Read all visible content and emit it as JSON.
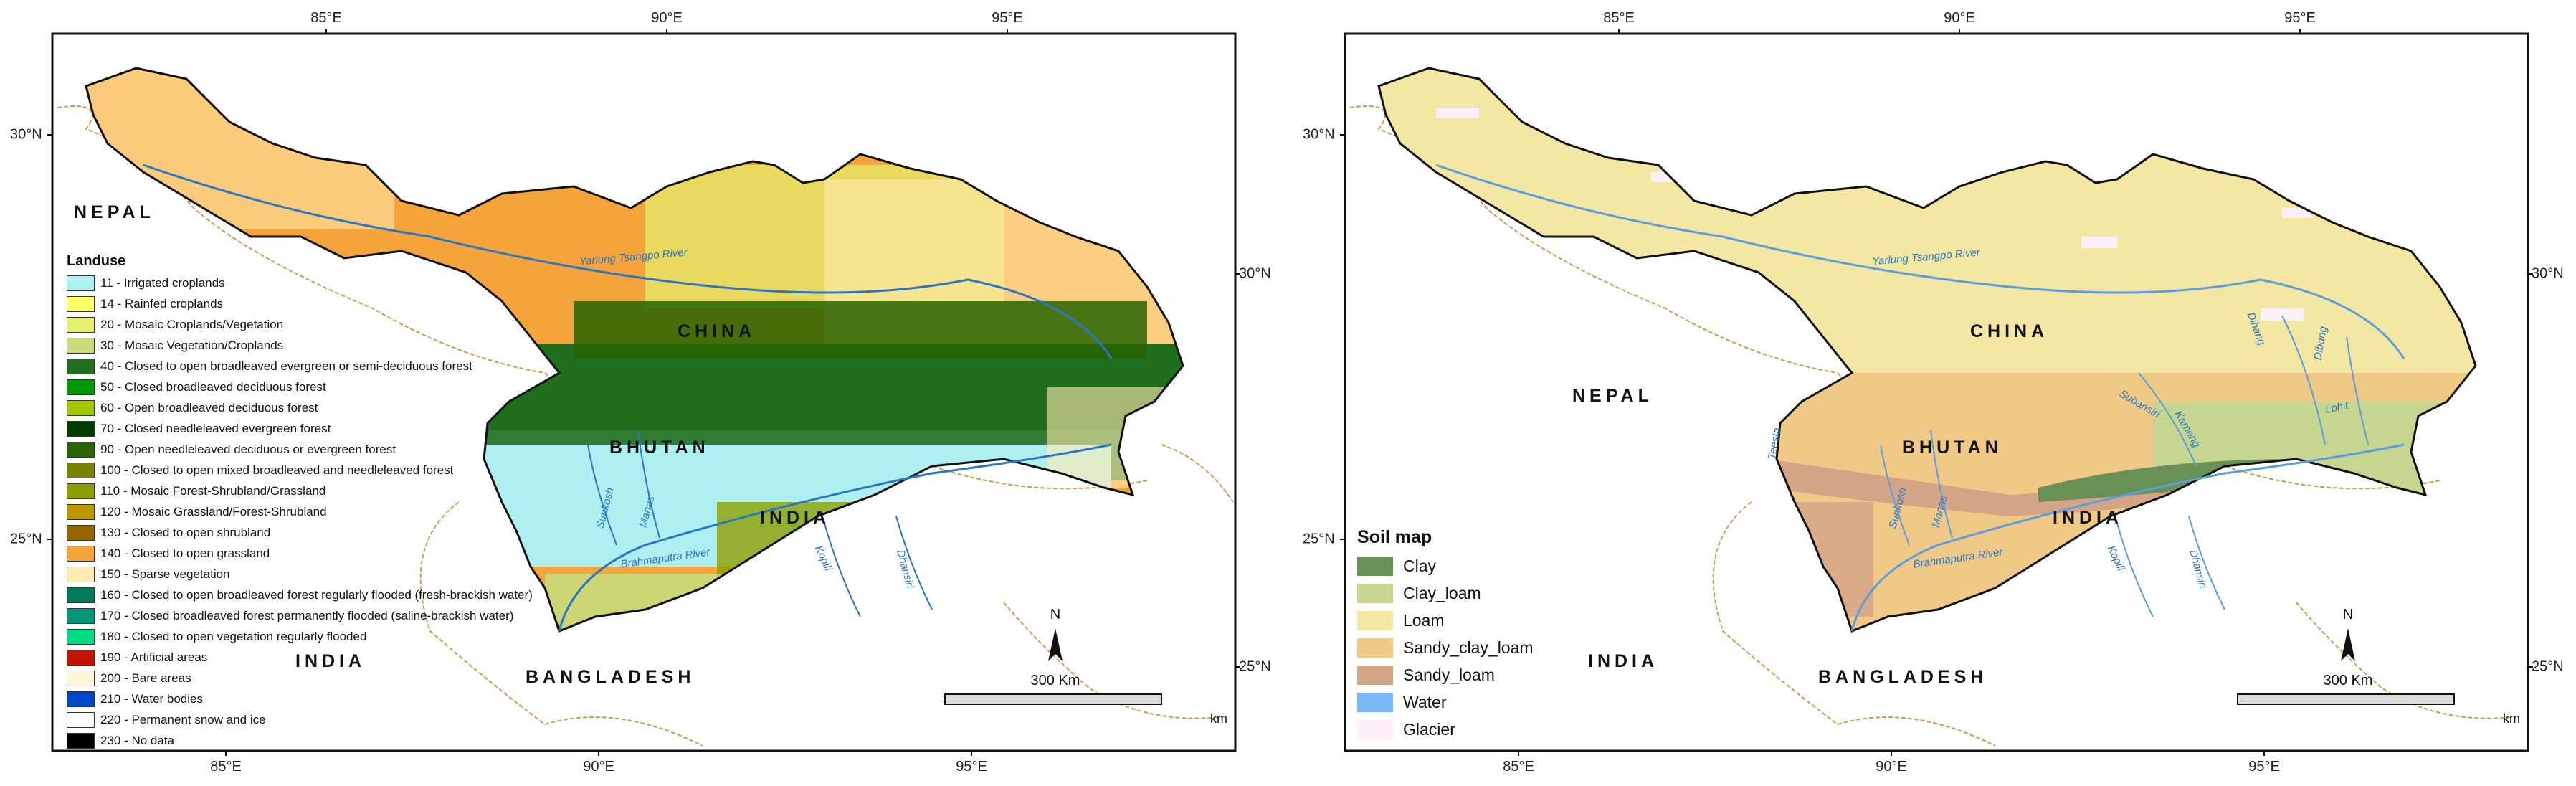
{
  "left_map": {
    "top_ticks": [
      "85°E",
      "90°E",
      "95°E"
    ],
    "bottom_ticks": [
      "85°E",
      "90°E",
      "95°E"
    ],
    "left_ticks": [
      "30°N",
      "25°N"
    ],
    "right_ticks": [
      "30°N",
      "25°N"
    ],
    "countries": {
      "nepal": "NEPAL",
      "china": "CHINA",
      "bhutan": "BHUTAN",
      "india_east": "INDIA",
      "india_south": "INDIA",
      "bangladesh": "BANGLADESH"
    },
    "rivers": {
      "yarlung": "Yarlung Tsangpo River",
      "brahmaputra": "Brahmaputra River",
      "sunkosh": "Sunkosh",
      "manas": "Manas",
      "kopili": "Kopili",
      "dhansiri": "Dhansiri"
    },
    "legend": {
      "title": "Landuse",
      "items": [
        {
          "label": "11 - Irrigated croplands",
          "color": "#aef0f2"
        },
        {
          "label": "14 - Rainfed croplands",
          "color": "#ffff66"
        },
        {
          "label": "20 - Mosaic Croplands/Vegetation",
          "color": "#e6f06e"
        },
        {
          "label": "30 - Mosaic Vegetation/Croplands",
          "color": "#c8dc7a"
        },
        {
          "label": "40 - Closed to open broadleaved evergreen or semi-deciduous forest",
          "color": "#1e6e1e"
        },
        {
          "label": "50 - Closed broadleaved deciduous forest",
          "color": "#009900"
        },
        {
          "label": "60 - Open broadleaved deciduous forest",
          "color": "#a0c800"
        },
        {
          "label": "70 - Closed needleleaved evergreen forest",
          "color": "#003c00"
        },
        {
          "label": "90 - Open needleleaved deciduous or evergreen forest",
          "color": "#286400"
        },
        {
          "label": "100 - Closed to open mixed broadleaved and needleleaved forest",
          "color": "#788200"
        },
        {
          "label": "110 - Mosaic Forest-Shrubland/Grassland",
          "color": "#8ca000"
        },
        {
          "label": "120 - Mosaic Grassland/Forest-Shrubland",
          "color": "#be9600"
        },
        {
          "label": "130 - Closed to open shrubland",
          "color": "#966400"
        },
        {
          "label": "140 - Closed to open grassland",
          "color": "#f5a43c"
        },
        {
          "label": "150 - Sparse vegetation",
          "color": "#ffebaf"
        },
        {
          "label": "160 - Closed to open broadleaved forest regularly flooded (fresh-brackish water)",
          "color": "#00785a"
        },
        {
          "label": "170 - Closed broadleaved forest permanently flooded (saline-brackish water)",
          "color": "#009678"
        },
        {
          "label": "180 - Closed to open vegetation regularly flooded",
          "color": "#00dc82"
        },
        {
          "label": "190 - Artificial areas",
          "color": "#c31400"
        },
        {
          "label": "200 - Bare areas",
          "color": "#fff5d7"
        },
        {
          "label": "210 - Water bodies",
          "color": "#0046c8"
        },
        {
          "label": "220 - Permanent snow and ice",
          "color": "#ffffff"
        },
        {
          "label": "230 - No data",
          "color": "#000000"
        }
      ]
    },
    "north_label": "N",
    "scale_label": "300 Km",
    "km_label": "km"
  },
  "right_map": {
    "top_ticks": [
      "85°E",
      "90°E",
      "95°E"
    ],
    "bottom_ticks": [
      "85°E",
      "90°E",
      "95°E"
    ],
    "left_ticks": [
      "30°N",
      "25°N"
    ],
    "right_ticks": [
      "30°N",
      "25°N"
    ],
    "countries": {
      "nepal": "NEPAL",
      "china": "CHINA",
      "bhutan": "BHUTAN",
      "india_east": "INDIA",
      "india_south": "INDIA",
      "bangladesh": "BANGLADESH"
    },
    "rivers": {
      "yarlung": "Yarlung Tsangpo River",
      "brahmaputra": "Brahmaputra River",
      "sunkosh": "Sunkosh",
      "manas": "Manas",
      "kopili": "Kopili",
      "dhansiri": "Dhansiri",
      "subansiri": "Subansiri",
      "kameng": "Kameng",
      "dibang": "Dibang",
      "dihang": "Dihang",
      "lohit": "Lohit",
      "teesta": "Teesta"
    },
    "legend": {
      "title": "Soil map",
      "items": [
        {
          "label": "Clay",
          "color": "#6a9155"
        },
        {
          "label": "Clay_loam",
          "color": "#c6d690"
        },
        {
          "label": "Loam",
          "color": "#f3e7a3"
        },
        {
          "label": "Sandy_clay_loam",
          "color": "#f0c987"
        },
        {
          "label": "Sandy_loam",
          "color": "#d4a487"
        },
        {
          "label": "Water",
          "color": "#7ab6f5"
        },
        {
          "label": "Glacier",
          "color": "#fdf0f8"
        }
      ]
    },
    "north_label": "N",
    "scale_label": "300 Km",
    "km_label": "km"
  }
}
